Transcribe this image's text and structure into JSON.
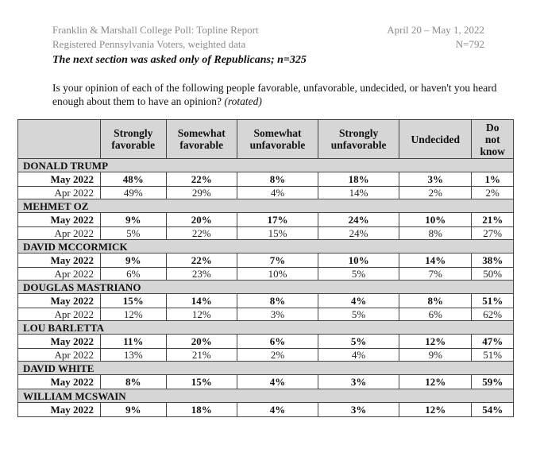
{
  "header": {
    "left_line1": "Franklin & Marshall College Poll: Topline Report",
    "left_line2": "Registered Pennsylvania Voters, weighted data",
    "right_line1": "April 20 – May 1, 2022",
    "right_line2": "N=792"
  },
  "section_note": "The next section was asked only of Republicans; n=325",
  "question": {
    "text": "Is your opinion of each of the following people favorable, unfavorable, undecided, or haven't you heard enough about them to have an opinion?",
    "note": "(rotated)"
  },
  "table": {
    "columns": [
      [
        "Strongly",
        "favorable"
      ],
      [
        "Somewhat",
        "favorable"
      ],
      [
        "Somewhat",
        "unfavorable"
      ],
      [
        "Strongly",
        "unfavorable"
      ],
      [
        "Undecided"
      ],
      [
        "Do",
        "not",
        "know"
      ]
    ],
    "candidates": [
      {
        "name": "DONALD TRUMP",
        "rows": [
          {
            "period": "May 2022",
            "values": [
              "48%",
              "22%",
              "8%",
              "18%",
              "3%",
              "1%"
            ]
          },
          {
            "period": "Apr 2022",
            "values": [
              "49%",
              "29%",
              "4%",
              "14%",
              "2%",
              "2%"
            ]
          }
        ]
      },
      {
        "name": "MEHMET OZ",
        "rows": [
          {
            "period": "May 2022",
            "values": [
              "9%",
              "20%",
              "17%",
              "24%",
              "10%",
              "21%"
            ]
          },
          {
            "period": "Apr 2022",
            "values": [
              "5%",
              "22%",
              "15%",
              "24%",
              "8%",
              "27%"
            ]
          }
        ]
      },
      {
        "name": "DAVID MCCORMICK",
        "rows": [
          {
            "period": "May 2022",
            "values": [
              "9%",
              "22%",
              "7%",
              "10%",
              "14%",
              "38%"
            ]
          },
          {
            "period": "Apr 2022",
            "values": [
              "6%",
              "23%",
              "10%",
              "5%",
              "7%",
              "50%"
            ]
          }
        ]
      },
      {
        "name": "DOUGLAS MASTRIANO",
        "rows": [
          {
            "period": "May 2022",
            "values": [
              "15%",
              "14%",
              "8%",
              "4%",
              "8%",
              "51%"
            ]
          },
          {
            "period": "Apr 2022",
            "values": [
              "12%",
              "12%",
              "3%",
              "5%",
              "6%",
              "62%"
            ]
          }
        ]
      },
      {
        "name": "LOU BARLETTA",
        "rows": [
          {
            "period": "May 2022",
            "values": [
              "11%",
              "20%",
              "6%",
              "5%",
              "12%",
              "47%"
            ]
          },
          {
            "period": "Apr 2022",
            "values": [
              "13%",
              "21%",
              "2%",
              "4%",
              "9%",
              "51%"
            ]
          }
        ]
      },
      {
        "name": "DAVID WHITE",
        "rows": [
          {
            "period": "May 2022",
            "values": [
              "8%",
              "15%",
              "4%",
              "3%",
              "12%",
              "59%"
            ]
          }
        ]
      },
      {
        "name": "WILLIAM MCSWAIN",
        "rows": [
          {
            "period": "May 2022",
            "values": [
              "9%",
              "18%",
              "4%",
              "3%",
              "12%",
              "54%"
            ]
          }
        ]
      }
    ]
  }
}
